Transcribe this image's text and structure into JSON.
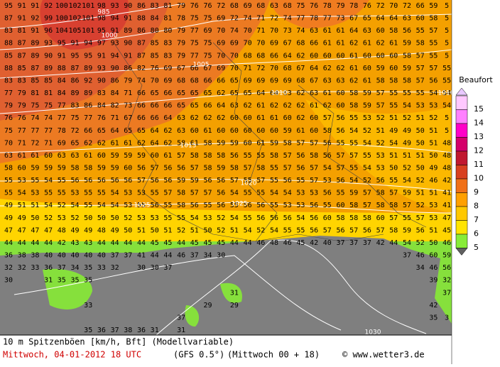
{
  "grid": {
    "rows": [
      [
        95,
        91,
        91,
        92,
        100,
        102,
        101,
        98,
        93,
        90,
        86,
        83,
        81,
        79,
        76,
        76,
        72,
        68,
        69,
        68,
        63,
        68,
        75,
        76,
        78,
        79,
        78,
        76,
        72,
        70,
        72,
        66,
        59,
        5
      ],
      [
        87,
        91,
        92,
        99,
        100,
        102,
        101,
        98,
        94,
        91,
        88,
        84,
        81,
        78,
        75,
        75,
        69,
        72,
        74,
        71,
        72,
        74,
        77,
        78,
        77,
        73,
        67,
        65,
        64,
        64,
        63,
        60,
        58,
        5
      ],
      [
        83,
        81,
        91,
        96,
        104,
        105,
        101,
        95,
        91,
        89,
        86,
        80,
        80,
        79,
        77,
        69,
        70,
        74,
        70,
        71,
        70,
        73,
        74,
        63,
        61,
        61,
        64,
        63,
        60,
        58,
        56,
        55,
        57,
        5
      ],
      [
        88,
        87,
        89,
        93,
        95,
        91,
        94,
        97,
        93,
        90,
        87,
        85,
        83,
        79,
        75,
        75,
        69,
        69,
        70,
        70,
        69,
        67,
        68,
        66,
        61,
        61,
        62,
        61,
        62,
        61,
        59,
        58,
        55,
        5
      ],
      [
        85,
        87,
        89,
        90,
        91,
        95,
        95,
        91,
        94,
        91,
        87,
        85,
        83,
        79,
        77,
        75,
        70,
        70,
        68,
        68,
        66,
        64,
        62,
        60,
        60,
        60,
        61,
        60,
        60,
        60,
        58,
        57,
        55,
        5
      ],
      [
        88,
        85,
        87,
        89,
        88,
        87,
        89,
        93,
        90,
        86,
        82,
        76,
        69,
        67,
        66,
        67,
        69,
        70,
        71,
        72,
        70,
        68,
        67,
        64,
        62,
        62,
        61,
        60,
        59,
        60,
        59,
        57,
        57,
        55
      ],
      [
        83,
        83,
        85,
        85,
        84,
        86,
        92,
        90,
        86,
        79,
        74,
        70,
        69,
        68,
        68,
        66,
        66,
        65,
        69,
        69,
        69,
        69,
        68,
        67,
        63,
        63,
        62,
        61,
        58,
        58,
        58,
        57,
        56,
        55
      ],
      [
        77,
        79,
        81,
        81,
        84,
        89,
        89,
        83,
        84,
        71,
        66,
        65,
        66,
        65,
        65,
        65,
        62,
        65,
        65,
        64,
        64,
        63,
        62,
        63,
        61,
        60,
        58,
        59,
        57,
        55,
        55,
        55,
        54,
        54
      ],
      [
        79,
        79,
        75,
        75,
        77,
        83,
        86,
        84,
        82,
        73,
        66,
        66,
        66,
        65,
        65,
        66,
        64,
        63,
        62,
        61,
        62,
        62,
        62,
        61,
        62,
        60,
        58,
        59,
        57,
        55,
        54,
        53,
        53,
        54
      ],
      [
        76,
        76,
        74,
        74,
        77,
        75,
        77,
        76,
        71,
        67,
        66,
        66,
        64,
        63,
        62,
        62,
        62,
        60,
        60,
        61,
        61,
        60,
        62,
        60,
        57,
        56,
        55,
        53,
        52,
        51,
        52,
        51,
        52,
        5
      ],
      [
        75,
        77,
        77,
        77,
        78,
        72,
        66,
        65,
        64,
        65,
        65,
        64,
        62,
        63,
        60,
        61,
        60,
        60,
        60,
        60,
        60,
        59,
        61,
        60,
        58,
        56,
        54,
        52,
        51,
        49,
        49,
        50,
        51,
        5
      ],
      [
        70,
        71,
        72,
        71,
        69,
        65,
        62,
        62,
        61,
        61,
        62,
        64,
        62,
        58,
        61,
        58,
        59,
        59,
        60,
        61,
        59,
        58,
        57,
        57,
        56,
        55,
        55,
        54,
        52,
        54,
        49,
        50,
        51,
        48
      ],
      [
        63,
        61,
        61,
        60,
        63,
        63,
        61,
        60,
        59,
        59,
        59,
        60,
        61,
        57,
        58,
        58,
        58,
        56,
        55,
        55,
        58,
        57,
        56,
        58,
        56,
        57,
        57,
        55,
        53,
        51,
        51,
        51,
        50,
        48
      ],
      [
        58,
        60,
        59,
        59,
        59,
        58,
        58,
        59,
        59,
        60,
        56,
        57,
        56,
        56,
        57,
        58,
        59,
        58,
        57,
        58,
        55,
        57,
        56,
        57,
        54,
        57,
        55,
        54,
        53,
        50,
        52,
        50,
        49,
        48
      ],
      [
        55,
        53,
        55,
        54,
        55,
        56,
        56,
        56,
        56,
        56,
        57,
        56,
        56,
        59,
        59,
        56,
        56,
        57,
        55,
        57,
        55,
        56,
        55,
        57,
        53,
        56,
        54,
        52,
        56,
        55,
        54,
        52,
        46,
        42
      ],
      [
        55,
        54,
        53,
        55,
        55,
        53,
        55,
        55,
        54,
        53,
        53,
        55,
        57,
        58,
        57,
        57,
        56,
        54,
        55,
        55,
        54,
        54,
        53,
        53,
        56,
        55,
        59,
        57,
        58,
        57,
        59,
        51,
        51,
        41
      ],
      [
        49,
        51,
        51,
        54,
        52,
        54,
        55,
        54,
        54,
        53,
        55,
        56,
        55,
        58,
        56,
        55,
        56,
        55,
        56,
        56,
        55,
        53,
        53,
        56,
        55,
        60,
        58,
        57,
        58,
        58,
        57,
        52,
        53,
        41
      ],
      [
        49,
        49,
        50,
        52,
        53,
        52,
        50,
        50,
        50,
        52,
        53,
        53,
        55,
        55,
        54,
        53,
        52,
        54,
        55,
        56,
        56,
        56,
        54,
        56,
        60,
        58,
        58,
        58,
        60,
        57,
        55,
        57,
        53,
        47
      ],
      [
        47,
        47,
        47,
        47,
        48,
        49,
        49,
        48,
        49,
        50,
        51,
        50,
        51,
        52,
        51,
        50,
        52,
        51,
        54,
        52,
        54,
        55,
        55,
        56,
        57,
        56,
        57,
        56,
        57,
        58,
        59,
        56,
        51,
        45
      ],
      [
        44,
        44,
        44,
        44,
        42,
        43,
        43,
        44,
        44,
        44,
        44,
        45,
        45,
        44,
        45,
        45,
        45,
        44,
        44,
        46,
        48,
        46,
        45,
        42,
        40,
        37,
        37,
        37,
        42,
        44,
        54,
        52,
        50,
        46
      ],
      [
        36,
        38,
        38,
        40,
        40,
        40,
        40,
        40,
        37,
        37,
        41,
        44,
        44,
        46,
        37,
        34,
        30,
        null,
        null,
        null,
        null,
        null,
        null,
        null,
        null,
        null,
        null,
        null,
        null,
        null,
        37,
        46,
        60,
        59
      ],
      [
        32,
        32,
        33,
        36,
        37,
        34,
        35,
        33,
        32,
        null,
        30,
        30,
        37,
        null,
        null,
        null,
        null,
        null,
        null,
        null,
        null,
        null,
        null,
        null,
        null,
        null,
        null,
        null,
        null,
        null,
        null,
        34,
        46,
        56
      ],
      [
        30,
        null,
        null,
        31,
        35,
        35,
        35,
        null,
        null,
        null,
        null,
        null,
        null,
        null,
        null,
        null,
        null,
        null,
        null,
        null,
        null,
        null,
        null,
        null,
        null,
        null,
        null,
        null,
        null,
        null,
        null,
        null,
        39,
        32
      ],
      [
        null,
        null,
        null,
        null,
        null,
        null,
        null,
        null,
        null,
        null,
        null,
        null,
        null,
        null,
        null,
        null,
        null,
        31,
        null,
        null,
        null,
        null,
        null,
        null,
        null,
        null,
        null,
        null,
        null,
        null,
        null,
        null,
        null,
        37
      ],
      [
        null,
        null,
        null,
        null,
        null,
        null,
        33,
        null,
        null,
        null,
        null,
        null,
        null,
        null,
        null,
        29,
        null,
        29,
        null,
        null,
        null,
        null,
        null,
        null,
        null,
        null,
        null,
        null,
        null,
        null,
        null,
        null,
        42,
        null
      ],
      [
        null,
        null,
        null,
        null,
        null,
        null,
        null,
        null,
        null,
        null,
        null,
        null,
        null,
        37,
        null,
        null,
        null,
        null,
        null,
        null,
        null,
        null,
        null,
        null,
        null,
        null,
        null,
        null,
        null,
        null,
        null,
        null,
        35,
        3
      ],
      [
        null,
        null,
        null,
        null,
        null,
        null,
        35,
        36,
        37,
        38,
        36,
        31,
        null,
        31,
        null,
        null,
        null,
        null,
        null,
        null,
        null,
        null,
        null,
        null,
        null,
        null,
        null,
        null,
        null,
        null,
        null,
        null,
        null,
        null
      ]
    ]
  },
  "isobars": [
    "985",
    "1000",
    "1005",
    "1010",
    "1010",
    "1015",
    "1020",
    "1025",
    "1025",
    "1030"
  ],
  "legend": {
    "title": "Beaufort",
    "items": [
      {
        "value": 15,
        "color": "#ffc8ff"
      },
      {
        "value": 14,
        "color": "#ff80ff"
      },
      {
        "value": 13,
        "color": "#ff00c8"
      },
      {
        "value": 12,
        "color": "#d4006a"
      },
      {
        "value": 11,
        "color": "#c01830"
      },
      {
        "value": 10,
        "color": "#d84020"
      },
      {
        "value": 9,
        "color": "#f07018"
      },
      {
        "value": 8,
        "color": "#ffa000"
      },
      {
        "value": 7,
        "color": "#ffc800"
      },
      {
        "value": 6,
        "color": "#ffe400"
      },
      {
        "value": 5,
        "color": "#88ec38"
      }
    ]
  },
  "footer": {
    "line1": "10 m Spitzenböen [km/h, Bft] (Modellvariable)",
    "date": "Mittwoch, 04-01-2012  18 UTC",
    "model": "(GFS 0.5°)",
    "run": "(Mittwoch 00 + 18)",
    "copyright": "© www.wetter3.de"
  }
}
